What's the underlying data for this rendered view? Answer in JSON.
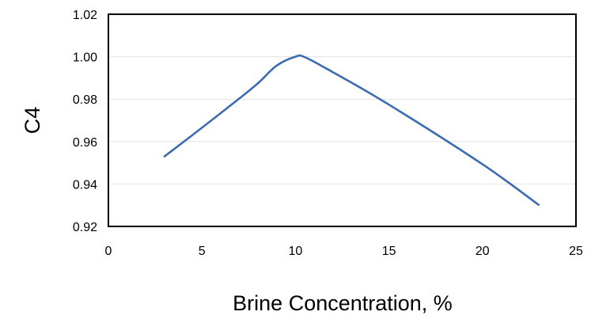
{
  "chart_data": {
    "type": "line",
    "xlabel": "Brine Concentration, %",
    "ylabel": "C4",
    "xlim": [
      0,
      25
    ],
    "ylim": [
      0.92,
      1.02
    ],
    "x_ticks": [
      "0",
      "5",
      "10",
      "15",
      "20",
      "25"
    ],
    "y_ticks": [
      "0.92",
      "0.94",
      "0.96",
      "0.98",
      "1.00",
      "1.02"
    ],
    "grid": "horizontal",
    "legend": "none",
    "line_color": "#3c6cb0",
    "series": [
      {
        "x": [
          3,
          5,
          7,
          8,
          9,
          10,
          10.5,
          12,
          15,
          20,
          23
        ],
        "values": [
          0.953,
          0.9665,
          0.9803,
          0.9875,
          0.9958,
          1.0,
          0.9998,
          0.9927,
          0.9774,
          0.9493,
          0.9302
        ]
      }
    ]
  }
}
